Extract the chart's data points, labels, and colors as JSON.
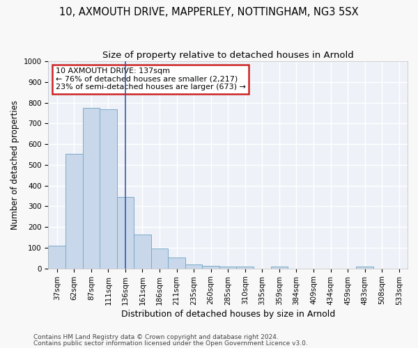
{
  "title1": "10, AXMOUTH DRIVE, MAPPERLEY, NOTTINGHAM, NG3 5SX",
  "title2": "Size of property relative to detached houses in Arnold",
  "xlabel": "Distribution of detached houses by size in Arnold",
  "ylabel": "Number of detached properties",
  "categories": [
    "37sqm",
    "62sqm",
    "87sqm",
    "111sqm",
    "136sqm",
    "161sqm",
    "186sqm",
    "211sqm",
    "235sqm",
    "260sqm",
    "285sqm",
    "310sqm",
    "335sqm",
    "359sqm",
    "384sqm",
    "409sqm",
    "434sqm",
    "459sqm",
    "483sqm",
    "508sqm",
    "533sqm"
  ],
  "values": [
    110,
    555,
    775,
    770,
    345,
    165,
    95,
    53,
    18,
    14,
    10,
    10,
    0,
    10,
    0,
    0,
    0,
    0,
    9,
    0,
    0
  ],
  "bar_color": "#c8d8ea",
  "bar_edge_color": "#7aaac8",
  "vline_color": "#3355aa",
  "vline_x_index": 4,
  "annotation_line1": "10 AXMOUTH DRIVE: 137sqm",
  "annotation_line2": "← 76% of detached houses are smaller (2,217)",
  "annotation_line3": "23% of semi-detached houses are larger (673) →",
  "annotation_box_facecolor": "#ffffff",
  "annotation_box_edgecolor": "#cc2222",
  "ylim": [
    0,
    1000
  ],
  "yticks": [
    0,
    100,
    200,
    300,
    400,
    500,
    600,
    700,
    800,
    900,
    1000
  ],
  "bg_color": "#eef2f8",
  "fig_bg_color": "#f8f8f8",
  "footer1": "Contains HM Land Registry data © Crown copyright and database right 2024.",
  "footer2": "Contains public sector information licensed under the Open Government Licence v3.0.",
  "title1_fontsize": 10.5,
  "title2_fontsize": 9.5,
  "xlabel_fontsize": 9,
  "ylabel_fontsize": 8.5,
  "tick_fontsize": 7.5,
  "annot_fontsize": 8,
  "footer_fontsize": 6.5,
  "grid_color": "#ffffff",
  "grid_linewidth": 1.0
}
